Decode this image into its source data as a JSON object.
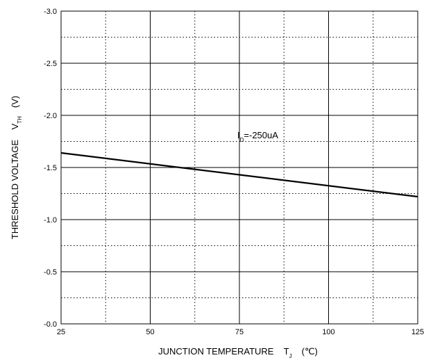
{
  "chart_data": {
    "type": "line",
    "x": [
      25,
      125
    ],
    "series": [
      {
        "name": "",
        "x": [
          25,
          125
        ],
        "y": [
          -1.64,
          -1.22
        ]
      }
    ],
    "xlim": [
      25,
      125
    ],
    "ylim": [
      0.0,
      -3.0
    ],
    "x_ticks": [
      "25",
      "50",
      "75",
      "100",
      "125"
    ],
    "y_ticks": [
      "-0.0",
      "-0.5",
      "-1.0",
      "-1.5",
      "-2.0",
      "-2.5",
      "-3.0"
    ],
    "xlabel": {
      "main": "JUNCTION TEMPERATURE    T",
      "sub": "J",
      "unit": "(℃)"
    },
    "ylabel": {
      "main": "THRESHOLD VOLTAGE    V",
      "sub": "TH",
      "unit": "(V)"
    },
    "annotation": {
      "main": "I",
      "sub": "D",
      "rest": "=-250uA"
    },
    "grid": true,
    "grid_style": "solid major lines, dotted minor lines",
    "line_color": "#000000"
  }
}
